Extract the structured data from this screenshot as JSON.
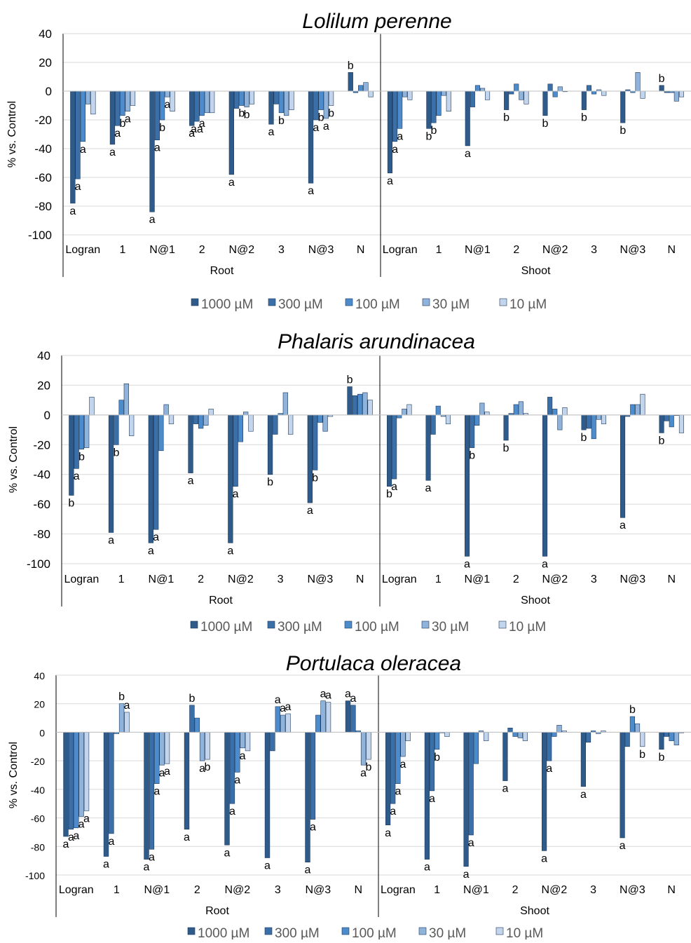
{
  "legend": {
    "series": [
      "1000 µM",
      "300 µM",
      "100 µM",
      "30 µM",
      "10 µM"
    ],
    "colors": [
      "#2f5b8a",
      "#3b6fa8",
      "#4d8ccc",
      "#8fb3db",
      "#c2d5ec"
    ]
  },
  "chart_data": [
    {
      "type": "bar",
      "title": "Lolilum perenne",
      "ylabel": "% vs. Control",
      "ylim": [
        -100,
        40
      ],
      "yticks": [
        40,
        20,
        0,
        -20,
        -40,
        -60,
        -80,
        -100
      ],
      "groups": [
        "Root",
        "Shoot"
      ],
      "categories": [
        "Logran",
        "1",
        "N@1",
        "2",
        "N@2",
        "3",
        "N@3",
        "N"
      ],
      "series_names": [
        "1000 µM",
        "300 µM",
        "100 µM",
        "30 µM",
        "10 µM"
      ],
      "values": {
        "Root": [
          [
            -78,
            -61,
            -35,
            -9,
            -16
          ],
          [
            -37,
            -24,
            -17,
            -14,
            -10
          ],
          [
            -84,
            -34,
            -20,
            -4,
            -14
          ],
          [
            -24,
            -21,
            -17,
            -15,
            -15
          ],
          [
            -58,
            -12,
            -10,
            -11,
            -9
          ],
          [
            -23,
            -9,
            -15,
            -17,
            -13
          ],
          [
            -64,
            -20,
            -13,
            -19,
            -10
          ],
          [
            13,
            -1,
            4,
            6,
            -4
          ]
        ],
        "Shoot": [
          [
            -57,
            -35,
            -26,
            -4,
            -6
          ],
          [
            -26,
            -22,
            -17,
            -3,
            -14
          ],
          [
            -38,
            -11,
            4,
            2,
            -6
          ],
          [
            -13,
            -2,
            5,
            -6,
            -9
          ],
          [
            -17,
            5,
            -4,
            3,
            0
          ],
          [
            -13,
            4,
            -2,
            1,
            -3
          ],
          [
            -22,
            1,
            -1,
            13,
            -5
          ],
          [
            4,
            -1,
            -1,
            -7,
            -4
          ]
        ]
      },
      "letters": {
        "Root": [
          [
            "a",
            "a",
            "a",
            "",
            ""
          ],
          [
            "a",
            "a",
            "b",
            "a",
            ""
          ],
          [
            "a",
            "a",
            "b",
            "a",
            ""
          ],
          [
            "a",
            "aa",
            "a",
            "",
            ""
          ],
          [
            "a",
            "",
            "b",
            "b",
            ""
          ],
          [
            "a",
            "",
            "b",
            "",
            ""
          ],
          [
            "a",
            "a",
            "b",
            "a",
            "b"
          ],
          [
            "b",
            "",
            "",
            "",
            ""
          ]
        ],
        "Shoot": [
          [
            "a",
            "a",
            "a",
            "",
            ""
          ],
          [
            "b",
            "b",
            "",
            "",
            ""
          ],
          [
            "a",
            "",
            "",
            "",
            ""
          ],
          [
            "b",
            "",
            "",
            "",
            ""
          ],
          [
            "b",
            "",
            "",
            "",
            ""
          ],
          [
            "b",
            "",
            "",
            "",
            ""
          ],
          [
            "b",
            "",
            "",
            "",
            ""
          ],
          [
            "b",
            "",
            "",
            "",
            ""
          ]
        ]
      }
    },
    {
      "type": "bar",
      "title": "Phalaris arundinacea",
      "ylabel": "% vs. Control",
      "ylim": [
        -100,
        40
      ],
      "yticks": [
        40,
        20,
        0,
        -20,
        -40,
        -60,
        -80,
        -100
      ],
      "groups": [
        "Root",
        "Shoot"
      ],
      "categories": [
        "Logran",
        "1",
        "N@1",
        "2",
        "N@2",
        "3",
        "N@3",
        "N"
      ],
      "series_names": [
        "1000 µM",
        "300 µM",
        "100 µM",
        "30 µM",
        "10 µM"
      ],
      "values": {
        "Root": [
          [
            -54,
            -36,
            -23,
            -22,
            12
          ],
          [
            -79,
            -20,
            10,
            21,
            -14
          ],
          [
            -86,
            -77,
            -24,
            7,
            -6
          ],
          [
            -39,
            -6,
            -9,
            -7,
            4
          ],
          [
            -86,
            -48,
            -18,
            2,
            -11
          ],
          [
            -40,
            -13,
            1,
            15,
            -13
          ],
          [
            -59,
            -37,
            -5,
            -11,
            -1
          ],
          [
            19,
            13,
            14,
            15,
            10
          ]
        ],
        "Shoot": [
          [
            -48,
            -43,
            -2,
            4,
            7
          ],
          [
            -44,
            -13,
            6,
            -1,
            -6
          ],
          [
            -95,
            -22,
            -7,
            8,
            2
          ],
          [
            -17,
            1,
            7,
            9,
            1
          ],
          [
            -95,
            12,
            4,
            -10,
            5
          ],
          [
            -10,
            -9,
            -16,
            -3,
            -6
          ],
          [
            -69,
            -1,
            7,
            7,
            14
          ],
          [
            -12,
            -4,
            -8,
            0,
            -12
          ]
        ]
      },
      "letters": {
        "Root": [
          [
            "b",
            "a",
            "b",
            "",
            ""
          ],
          [
            "a",
            "b",
            "",
            "",
            ""
          ],
          [
            "a",
            "a",
            "",
            "",
            ""
          ],
          [
            "a",
            "",
            "",
            "",
            ""
          ],
          [
            "a",
            "a",
            "",
            "",
            ""
          ],
          [
            "b",
            "",
            "",
            "",
            ""
          ],
          [
            "a",
            "b",
            "",
            "",
            ""
          ],
          [
            "b",
            "",
            "",
            "",
            ""
          ]
        ],
        "Shoot": [
          [
            "b",
            "a",
            "",
            "",
            ""
          ],
          [
            "a",
            "",
            "",
            "",
            ""
          ],
          [
            "a",
            "b",
            "",
            "",
            ""
          ],
          [
            "b",
            "",
            "",
            "",
            ""
          ],
          [
            "a",
            "",
            "",
            "",
            ""
          ],
          [
            "b",
            "",
            "",
            "",
            ""
          ],
          [
            "a",
            "",
            "",
            "",
            ""
          ],
          [
            "b",
            "",
            "",
            "",
            ""
          ]
        ]
      }
    },
    {
      "type": "bar",
      "title": "Portulaca oleracea",
      "ylabel": "% vs. Control",
      "ylim": [
        -100,
        40
      ],
      "yticks": [
        40,
        20,
        0,
        -20,
        -40,
        -60,
        -80,
        -100
      ],
      "groups": [
        "Root",
        "Shoot"
      ],
      "categories": [
        "Logran",
        "1",
        "N@1",
        "2",
        "N@2",
        "3",
        "N@3",
        "N"
      ],
      "series_names": [
        "1000 µM",
        "300 µM",
        "100 µM",
        "30 µM",
        "10 µM"
      ],
      "values": {
        "Root": [
          [
            -73,
            -68,
            -67,
            -59,
            -55
          ],
          [
            -87,
            -71,
            -1,
            20,
            14
          ],
          [
            -89,
            -82,
            -36,
            -23,
            -22
          ],
          [
            -68,
            19,
            10,
            -20,
            -19
          ],
          [
            -79,
            -50,
            -28,
            -11,
            -13
          ],
          [
            -88,
            -13,
            18,
            12,
            13
          ],
          [
            -91,
            -61,
            12,
            22,
            21
          ],
          [
            22,
            19,
            1,
            -23,
            -19
          ]
        ],
        "Shoot": [
          [
            -65,
            -50,
            -36,
            -17,
            -6
          ],
          [
            -89,
            -41,
            -12,
            0,
            -3
          ],
          [
            -94,
            -72,
            -22,
            1,
            -6
          ],
          [
            -34,
            3,
            -3,
            -4,
            -6
          ],
          [
            -83,
            -20,
            -3,
            5,
            1
          ],
          [
            -38,
            -7,
            1,
            -1,
            1
          ],
          [
            -74,
            -10,
            11,
            6,
            -10
          ],
          [
            -12,
            -3,
            -6,
            -9,
            0
          ]
        ]
      },
      "letters": {
        "Root": [
          [
            "a",
            "a",
            "a",
            "a",
            "a"
          ],
          [
            "a",
            "a",
            "",
            "b",
            "a"
          ],
          [
            "a",
            "a",
            "a",
            "a",
            "a"
          ],
          [
            "a",
            "b",
            "",
            "a",
            "b"
          ],
          [
            "a",
            "a",
            "a",
            "a",
            ""
          ],
          [
            "a",
            "",
            "a",
            "a",
            "a"
          ],
          [
            "a",
            "a",
            "",
            "a",
            "a"
          ],
          [
            "a",
            "a",
            "",
            "a",
            "b"
          ]
        ],
        "Shoot": [
          [
            "a",
            "a",
            "a",
            "a",
            ""
          ],
          [
            "a",
            "a",
            "b",
            "",
            ""
          ],
          [
            "a",
            "a",
            "",
            "",
            ""
          ],
          [
            "a",
            "",
            "",
            "",
            ""
          ],
          [
            "a",
            "a",
            "",
            "",
            ""
          ],
          [
            "a",
            "",
            "",
            "",
            ""
          ],
          [
            "a",
            "",
            "b",
            "",
            "b"
          ],
          [
            "b",
            "",
            "",
            "",
            ""
          ]
        ]
      }
    }
  ]
}
